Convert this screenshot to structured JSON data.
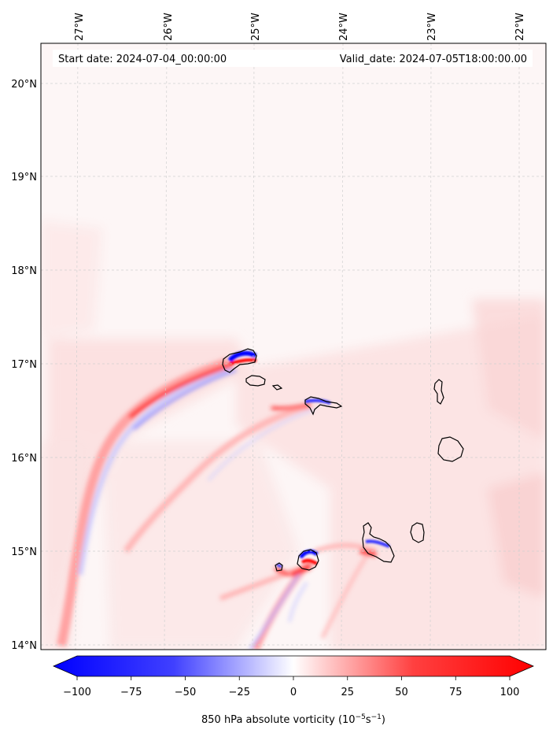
{
  "map": {
    "start_date": "Start date: 2024-07-04_00:00:00",
    "valid_date": "Valid_date: 2024-07-05T18:00:00.00",
    "lon_labels": [
      "27°W",
      "26°W",
      "25°W",
      "24°W",
      "23°W",
      "22°W"
    ],
    "lat_labels": [
      "20°N",
      "19°N",
      "18°N",
      "17°N",
      "16°N",
      "15°N",
      "14°N"
    ],
    "extent": {
      "lon_min": -27.4,
      "lon_max": -21.7,
      "lat_min": 13.95,
      "lat_max": 20.4
    }
  },
  "colorbar": {
    "label": "850 hPa absolute vorticity (10",
    "unit_exp": "−5",
    "unit_s": "s",
    "unit_exp2": "−1",
    "label_close": ")",
    "ticks": [
      "−100",
      "−75",
      "−50",
      "−25",
      "0",
      "25",
      "50",
      "75",
      "100"
    ],
    "min": -100,
    "max": 100,
    "colors": {
      "negative": "#0000ff",
      "zero": "#ffffff",
      "positive": "#ff0000"
    }
  },
  "islands": [
    "Santo Antão",
    "São Vicente",
    "Santa Luzia",
    "São Nicolau",
    "Sal",
    "Boa Vista",
    "Maio",
    "Santiago",
    "Fogo",
    "Brava"
  ]
}
